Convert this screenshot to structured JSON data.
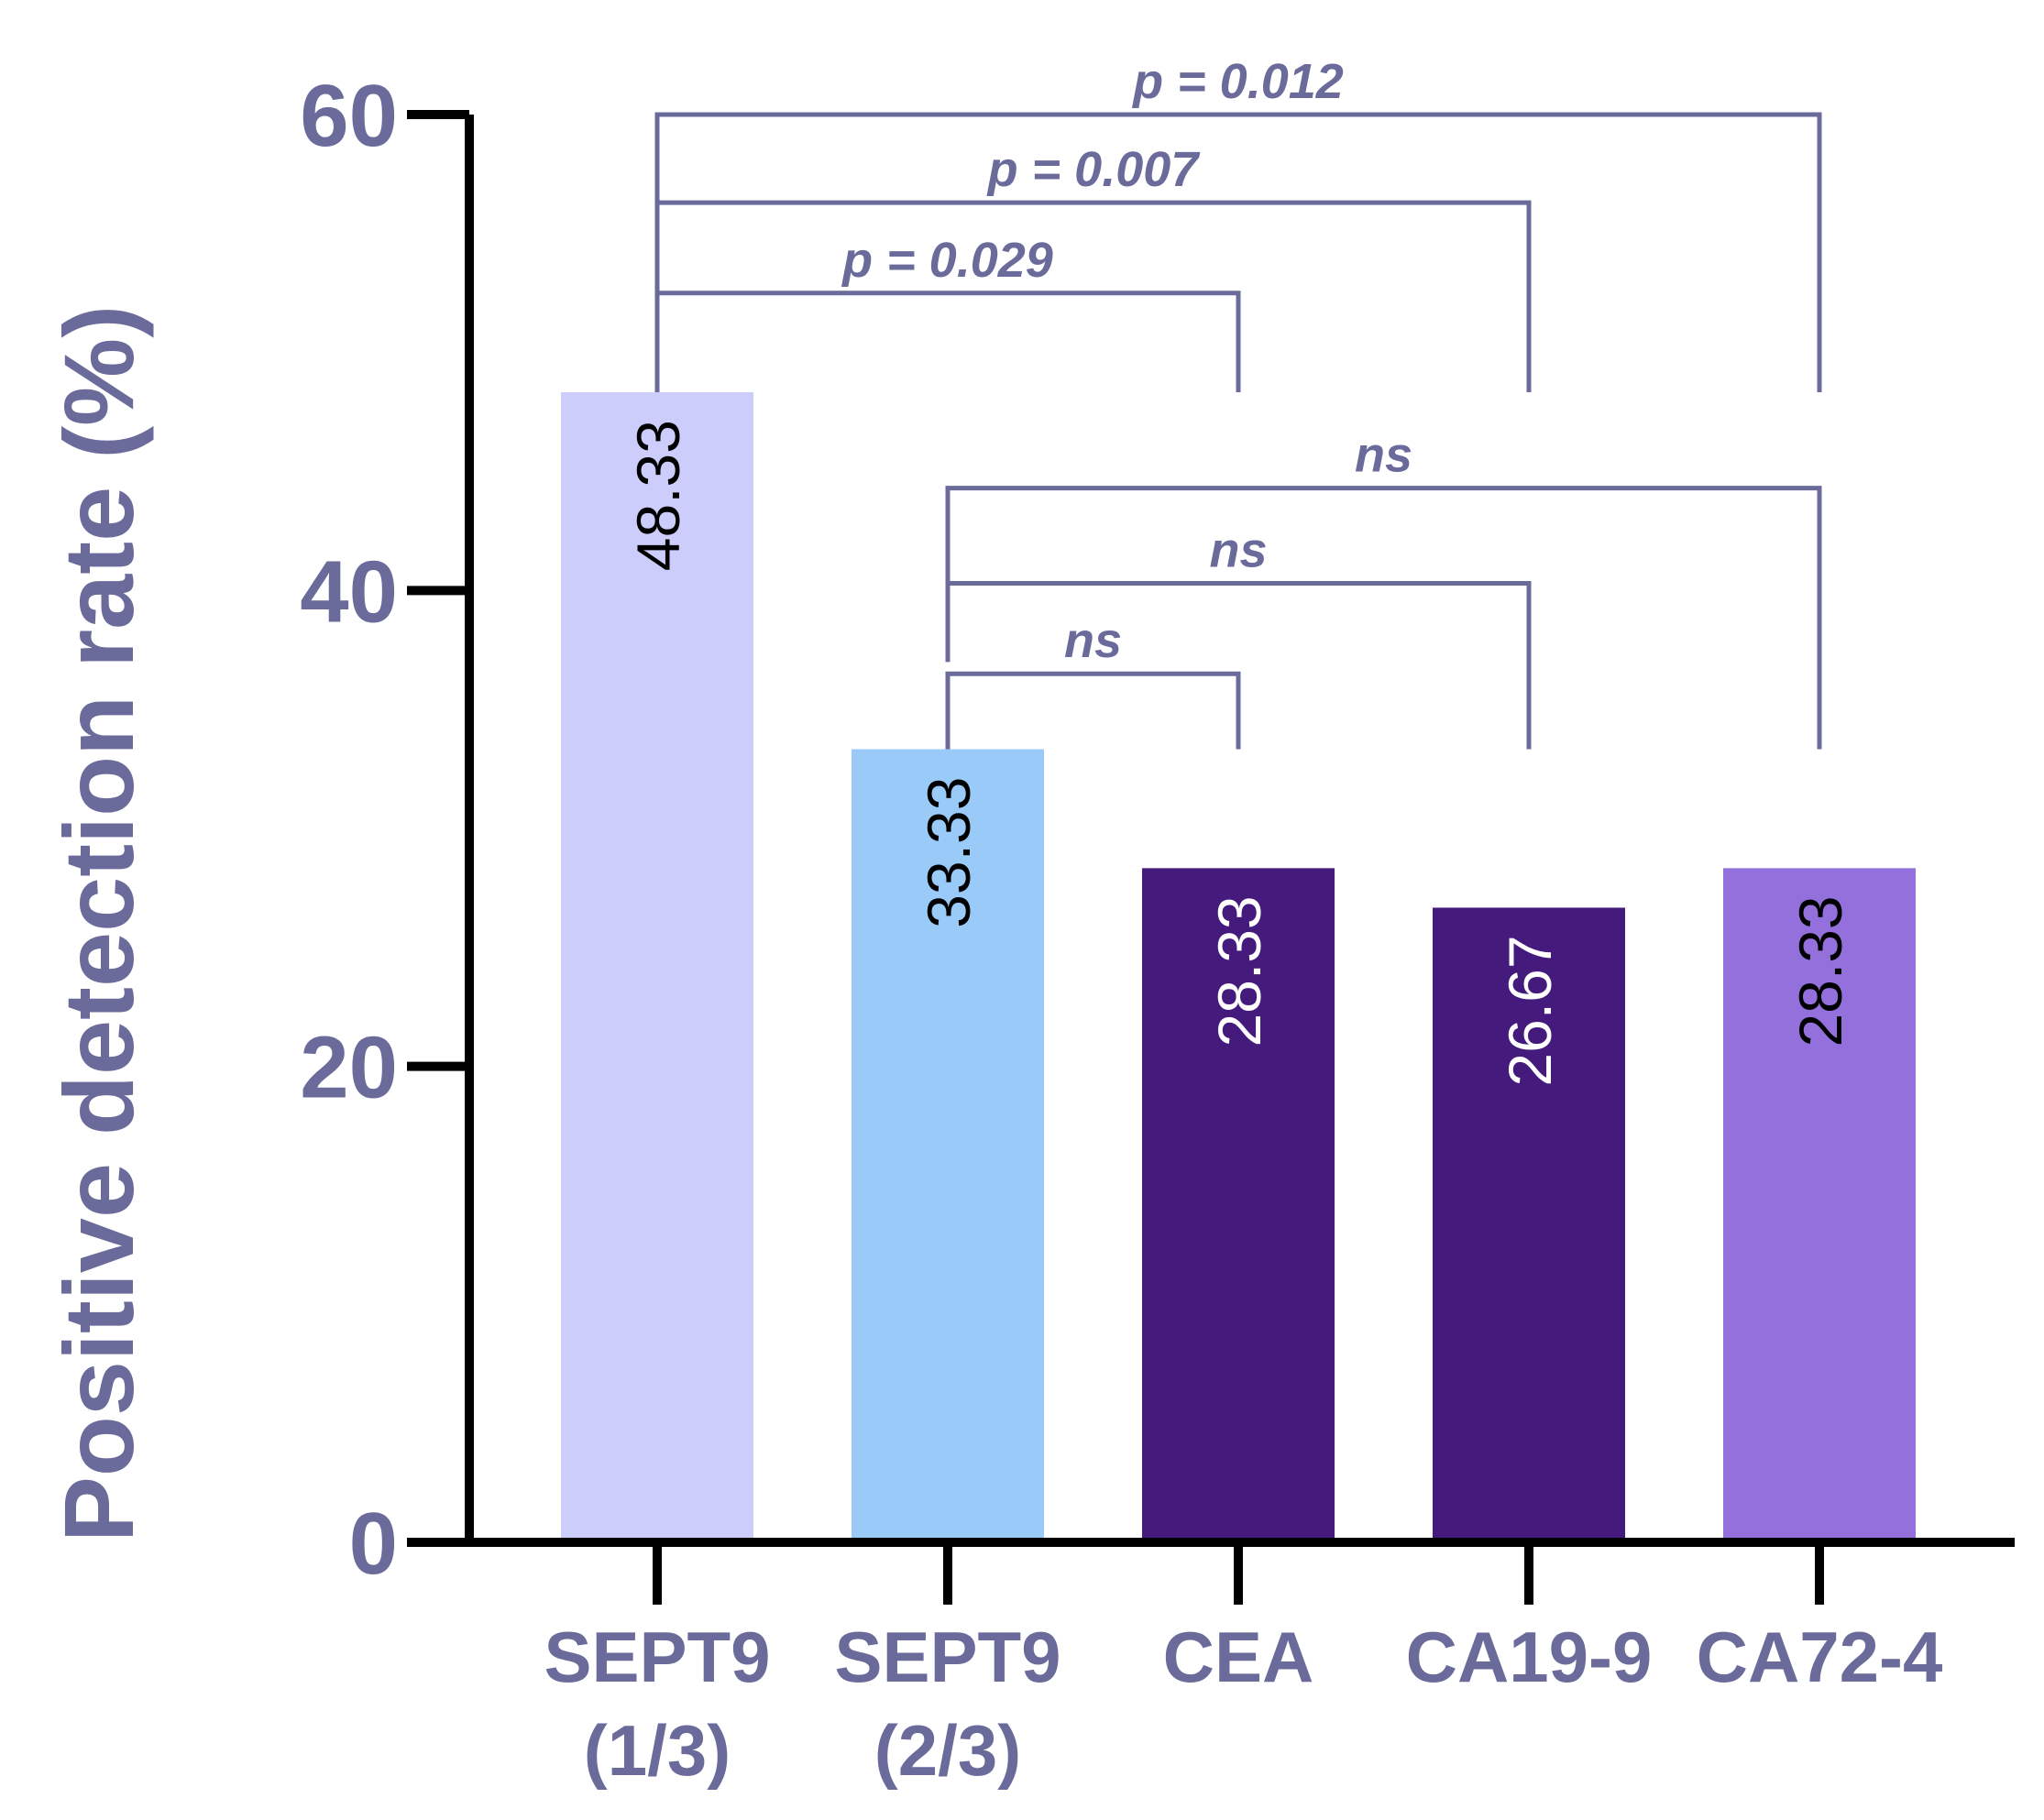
{
  "chart_data": {
    "type": "bar",
    "title": "",
    "xlabel": "",
    "ylabel": "Positive detection rate (%)",
    "ylim": [
      0,
      60
    ],
    "yticks": [
      0,
      20,
      40,
      60
    ],
    "categories": [
      {
        "line1": "SEPT9",
        "line2": "(1/3)"
      },
      {
        "line1": "SEPT9",
        "line2": "(2/3)"
      },
      {
        "line1": "CEA",
        "line2": ""
      },
      {
        "line1": "CA19-9",
        "line2": ""
      },
      {
        "line1": "CA72-4",
        "line2": ""
      }
    ],
    "values": [
      48.33,
      33.33,
      28.33,
      26.67,
      28.33
    ],
    "value_labels": [
      "48.33",
      "33.33",
      "28.33",
      "26.67",
      "28.33"
    ],
    "bar_colors": [
      "#cccdfb",
      "#99caf8",
      "#441a7c",
      "#441a7c",
      "#9370dc"
    ],
    "bar_label_colors": [
      "#000000",
      "#000000",
      "#ffffff",
      "#ffffff",
      "#000000"
    ],
    "comparisons": [
      {
        "from": 0,
        "to": 4,
        "label": "p = 0.012",
        "top_y": 60.0,
        "from_end_y": 48.33,
        "to_end_y": 48.33
      },
      {
        "from": 0,
        "to": 3,
        "label": "p = 0.007",
        "top_y": 56.3,
        "from_end_y": 48.33,
        "to_end_y": 48.33
      },
      {
        "from": 0,
        "to": 2,
        "label": "p = 0.029",
        "top_y": 52.5,
        "from_end_y": 48.33,
        "to_end_y": 48.33
      },
      {
        "from": 1,
        "to": 4,
        "label": "ns",
        "top_y": 44.3,
        "from_end_y": 37.0,
        "to_end_y": 33.33
      },
      {
        "from": 1,
        "to": 3,
        "label": "ns",
        "top_y": 40.3,
        "from_end_y": 37.0,
        "to_end_y": 33.33
      },
      {
        "from": 1,
        "to": 2,
        "label": "ns",
        "top_y": 36.5,
        "from_end_y": 33.33,
        "to_end_y": 33.33
      }
    ]
  },
  "colors": {
    "axis_text": "#6b6b9b",
    "bracket": "#6b6b9b",
    "axis_line": "#000000"
  }
}
